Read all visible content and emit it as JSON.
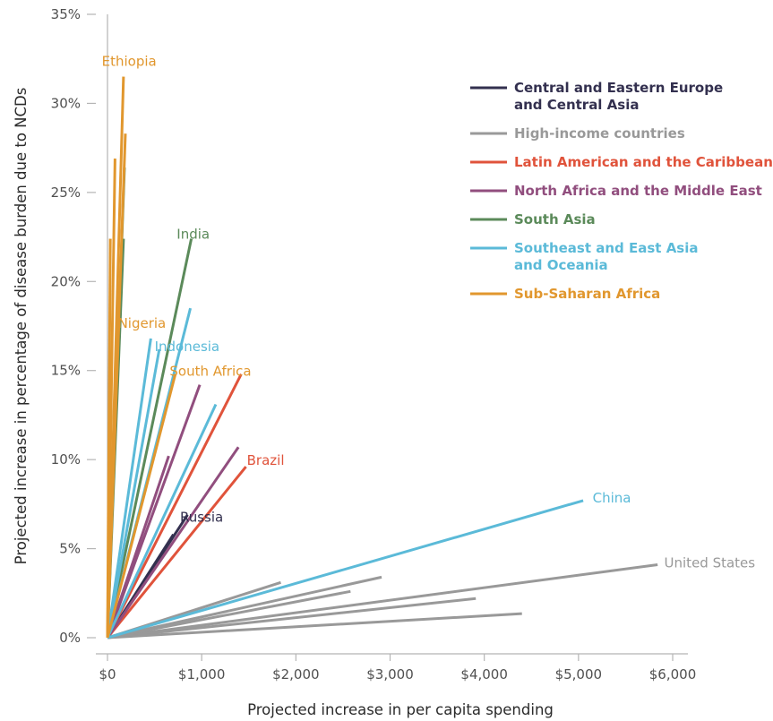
{
  "chart_data": {
    "type": "line",
    "xlabel": "Projected increase in per capita spending",
    "ylabel": "Projected increase in percentage of disease burden due to NCDs",
    "xlim": [
      0,
      6000
    ],
    "ylim": [
      0,
      35
    ],
    "x_ticks": [
      {
        "value": 0,
        "label": "$0"
      },
      {
        "value": 1000,
        "label": "$1,000"
      },
      {
        "value": 2000,
        "label": "$2,000"
      },
      {
        "value": 3000,
        "label": "$3,000"
      },
      {
        "value": 4000,
        "label": "$4,000"
      },
      {
        "value": 5000,
        "label": "$5,000"
      },
      {
        "value": 6000,
        "label": "$6,000"
      }
    ],
    "y_ticks": [
      {
        "value": 0,
        "label": "0%"
      },
      {
        "value": 5,
        "label": "5%"
      },
      {
        "value": 10,
        "label": "10%"
      },
      {
        "value": 15,
        "label": "15%"
      },
      {
        "value": 20,
        "label": "20%"
      },
      {
        "value": 25,
        "label": "25%"
      },
      {
        "value": 30,
        "label": "30%"
      },
      {
        "value": 35,
        "label": "35%"
      }
    ],
    "grid": false,
    "legend_position": "top-right",
    "series": [
      {
        "name": "Central and Eastern Europe and Central Asia",
        "legend_lines": [
          "Central and Eastern Europe",
          "and Central Asia"
        ],
        "color": "#33304f",
        "end_points": [
          [
            850,
            6.9
          ],
          [
            700,
            5.8
          ]
        ]
      },
      {
        "name": "High-income countries",
        "legend_lines": [
          "High-income countries"
        ],
        "color": "#999999",
        "end_points": [
          [
            5840,
            4.1
          ],
          [
            1840,
            3.1
          ],
          [
            2910,
            3.4
          ],
          [
            2580,
            2.6
          ],
          [
            3910,
            2.2
          ],
          [
            4400,
            1.35
          ]
        ]
      },
      {
        "name": "Latin American and the Caribbean",
        "legend_lines": [
          "Latin American and the Caribbean"
        ],
        "color": "#e0533b",
        "end_points": [
          [
            1420,
            14.8
          ],
          [
            1470,
            9.6
          ]
        ]
      },
      {
        "name": "North Africa and the Middle East",
        "legend_lines": [
          "North Africa and the Middle East"
        ],
        "color": "#914e7e",
        "end_points": [
          [
            980,
            14.2
          ],
          [
            1390,
            10.7
          ],
          [
            650,
            10.2
          ]
        ]
      },
      {
        "name": "South Asia",
        "legend_lines": [
          "South Asia"
        ],
        "color": "#5b8a5a",
        "end_points": [
          [
            890,
            22.4
          ],
          [
            180,
            26.4
          ],
          [
            170,
            22.4
          ]
        ]
      },
      {
        "name": "Southeast and East Asia and Oceania",
        "legend_lines": [
          "Southeast and East Asia",
          "and Oceania"
        ],
        "color": "#5bbad8",
        "end_points": [
          [
            5050,
            7.7
          ],
          [
            880,
            18.5
          ],
          [
            460,
            16.8
          ],
          [
            550,
            16.2
          ],
          [
            1150,
            13.1
          ]
        ]
      },
      {
        "name": "Sub-Saharan Africa",
        "legend_lines": [
          "Sub-Saharan Africa"
        ],
        "color": "#e1972e",
        "end_points": [
          [
            170,
            31.5
          ],
          [
            190,
            28.3
          ],
          [
            80,
            26.9
          ],
          [
            30,
            22.4
          ],
          [
            720,
            14.8
          ],
          [
            120,
            17.6
          ]
        ]
      }
    ],
    "annotations": [
      {
        "text": "Ethiopia",
        "x": 230,
        "y": 32.1,
        "anchor": "middle",
        "series": 6
      },
      {
        "text": "India",
        "x": 910,
        "y": 22.4,
        "anchor": "middle",
        "series": 4
      },
      {
        "text": "Nigeria",
        "x": 110,
        "y": 17.4,
        "anchor": "start",
        "series": 6
      },
      {
        "text": "Indonesia",
        "x": 500,
        "y": 16.1,
        "anchor": "start",
        "series": 5
      },
      {
        "text": "South Africa",
        "x": 660,
        "y": 14.7,
        "anchor": "start",
        "series": 6
      },
      {
        "text": "Brazil",
        "x": 1480,
        "y": 9.7,
        "anchor": "start",
        "series": 2
      },
      {
        "text": "China",
        "x": 5150,
        "y": 7.6,
        "anchor": "start",
        "series": 5
      },
      {
        "text": "Russia",
        "x": 770,
        "y": 6.5,
        "anchor": "start",
        "series": 0
      },
      {
        "text": "United States",
        "x": 5910,
        "y": 3.95,
        "anchor": "start",
        "series": 1
      }
    ]
  }
}
